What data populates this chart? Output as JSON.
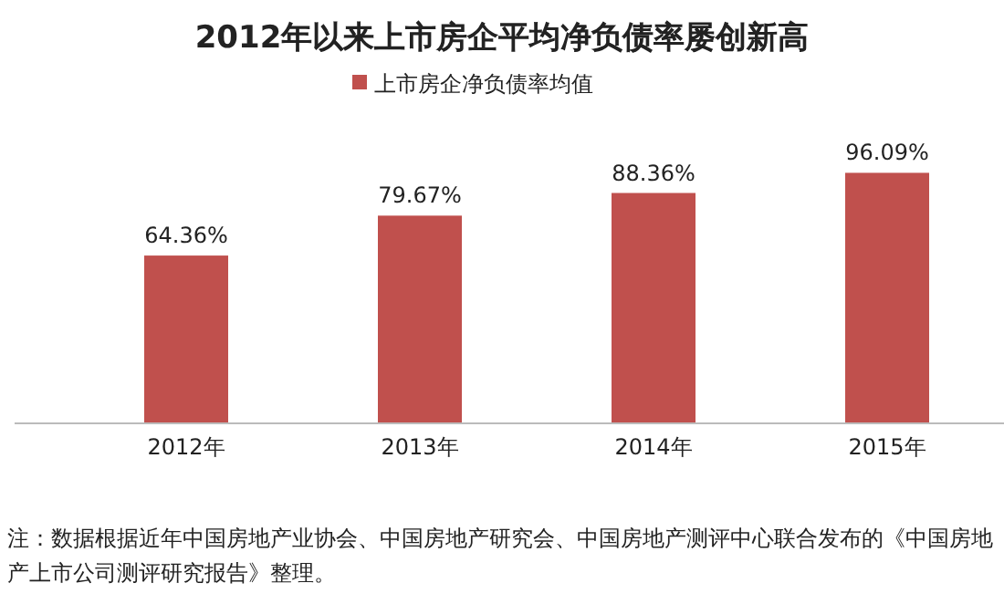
{
  "chart_data": {
    "type": "bar",
    "title": "2012年以来上市房企平均净负债率屡创新高",
    "categories": [
      "2012年",
      "2013年",
      "2014年",
      "2015年"
    ],
    "series": [
      {
        "name": "上市房企净负债率均值",
        "color": "#c0504d",
        "values": [
          64.36,
          79.67,
          88.36,
          96.09
        ],
        "value_labels": [
          "64.36%",
          "79.67%",
          "88.36%",
          "96.09%"
        ]
      }
    ],
    "legend": "top",
    "annotations": [
      "注：数据根据近年中国房地产业协会、中国房地产研究会、中国房地产测评中心联合发布的《中国房地产上市公司测评研究报告》整理。"
    ]
  }
}
